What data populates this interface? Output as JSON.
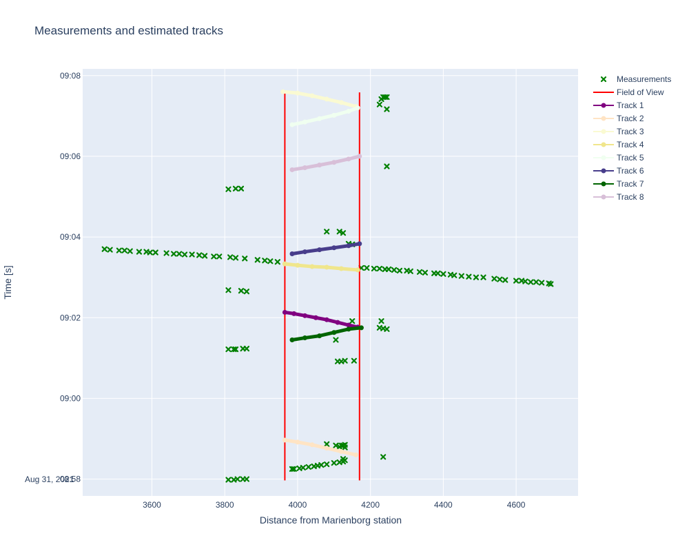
{
  "chart_data": {
    "type": "scatter",
    "title": "Measurements and estimated tracks",
    "xlabel": "Distance from Marienborg station",
    "ylabel": "Time [s]",
    "date_label": "Aug 31, 2021",
    "xlim": [
      3410,
      4770
    ],
    "ylim": [
      "08:57:35",
      "09:08:10"
    ],
    "x_ticks": [
      3600,
      3800,
      4000,
      4200,
      4400,
      4600
    ],
    "y_ticks": [
      "08:58",
      "09:00",
      "09:02",
      "09:04",
      "09:06",
      "09:08"
    ],
    "grid": true,
    "legend_position": "right",
    "colors": {
      "background": "#e5ecf6",
      "grid": "#ffffff",
      "measurements": "#008000",
      "field_of_view": "#ff0000"
    },
    "series": [
      {
        "name": "Measurements",
        "mode": "markers",
        "marker": "x",
        "color": "#008000",
        "points": [
          [
            "3470",
            "09:03:42"
          ],
          [
            "3485",
            "09:03:41"
          ],
          [
            "3510",
            "09:03:40"
          ],
          [
            "3525",
            "09:03:40"
          ],
          [
            "3540",
            "09:03:39"
          ],
          [
            "3565",
            "09:03:38"
          ],
          [
            "3585",
            "09:03:38"
          ],
          [
            "3595",
            "09:03:37"
          ],
          [
            "3610",
            "09:03:37"
          ],
          [
            "3640",
            "09:03:36"
          ],
          [
            "3660",
            "09:03:35"
          ],
          [
            "3675",
            "09:03:35"
          ],
          [
            "3690",
            "09:03:34"
          ],
          [
            "3710",
            "09:03:34"
          ],
          [
            "3730",
            "09:03:33"
          ],
          [
            "3745",
            "09:03:32"
          ],
          [
            "3770",
            "09:03:31"
          ],
          [
            "3785",
            "09:03:31"
          ],
          [
            "3815",
            "09:03:30"
          ],
          [
            "3830",
            "09:03:29"
          ],
          [
            "3855",
            "09:03:28"
          ],
          [
            "3890",
            "09:03:26"
          ],
          [
            "3910",
            "09:03:25"
          ],
          [
            "3925",
            "09:03:24"
          ],
          [
            "3945",
            "09:03:23"
          ],
          [
            "4175",
            "09:03:14"
          ],
          [
            "4190",
            "09:03:14"
          ],
          [
            "4210",
            "09:03:13"
          ],
          [
            "4225",
            "09:03:13"
          ],
          [
            "4240",
            "09:03:12"
          ],
          [
            "4250",
            "09:03:12"
          ],
          [
            "4265",
            "09:03:11"
          ],
          [
            "4280",
            "09:03:10"
          ],
          [
            "4300",
            "09:03:10"
          ],
          [
            "4310",
            "09:03:09"
          ],
          [
            "4335",
            "09:03:08"
          ],
          [
            "4350",
            "09:03:07"
          ],
          [
            "4375",
            "09:03:06"
          ],
          [
            "4385",
            "09:03:06"
          ],
          [
            "4400",
            "09:03:05"
          ],
          [
            "4420",
            "09:03:04"
          ],
          [
            "4430",
            "09:03:03"
          ],
          [
            "4450",
            "09:03:02"
          ],
          [
            "4470",
            "09:03:01"
          ],
          [
            "4490",
            "09:03:00"
          ],
          [
            "4510",
            "09:03:00"
          ],
          [
            "4540",
            "09:02:58"
          ],
          [
            "4555",
            "09:02:57"
          ],
          [
            "4570",
            "09:02:56"
          ],
          [
            "4600",
            "09:02:55"
          ],
          [
            "4615",
            "09:02:55"
          ],
          [
            "4625",
            "09:02:54"
          ],
          [
            "4640",
            "09:02:53"
          ],
          [
            "4655",
            "09:02:53"
          ],
          [
            "4670",
            "09:02:52"
          ],
          [
            "4690",
            "09:02:51"
          ],
          [
            "4695",
            "09:02:50"
          ],
          [
            "3810",
            "09:05:11"
          ],
          [
            "3830",
            "09:05:12"
          ],
          [
            "3845",
            "09:05:12"
          ],
          [
            "3810",
            "09:02:41"
          ],
          [
            "3845",
            "09:02:40"
          ],
          [
            "3860",
            "09:02:39"
          ],
          [
            "3810",
            "09:01:13"
          ],
          [
            "3825",
            "09:01:13"
          ],
          [
            "3830",
            "09:01:13"
          ],
          [
            "3850",
            "09:01:14"
          ],
          [
            "3860",
            "09:01:14"
          ],
          [
            "3810",
            "08:57:59"
          ],
          [
            "3825",
            "08:57:59"
          ],
          [
            "3835",
            "08:58:00"
          ],
          [
            "3850",
            "08:58:00"
          ],
          [
            "3860",
            "08:58:00"
          ],
          [
            "4080",
            "09:04:08"
          ],
          [
            "4115",
            "09:04:08"
          ],
          [
            "4125",
            "09:04:06"
          ],
          [
            "4140",
            "09:03:50"
          ],
          [
            "4150",
            "09:03:49"
          ],
          [
            "4225",
            "09:07:17"
          ],
          [
            "4230",
            "09:07:25"
          ],
          [
            "4235",
            "09:07:28"
          ],
          [
            "4240",
            "09:07:28"
          ],
          [
            "4245",
            "09:07:28"
          ],
          [
            "4245",
            "09:07:10"
          ],
          [
            "4245",
            "09:05:45"
          ],
          [
            "4150",
            "09:01:55"
          ],
          [
            "4230",
            "09:01:55"
          ],
          [
            "4225",
            "09:01:45"
          ],
          [
            "4235",
            "09:01:44"
          ],
          [
            "4245",
            "09:01:43"
          ],
          [
            "4105",
            "09:01:27"
          ],
          [
            "4110",
            "09:00:55"
          ],
          [
            "4120",
            "09:00:55"
          ],
          [
            "4130",
            "09:00:56"
          ],
          [
            "4155",
            "09:00:56"
          ],
          [
            "4080",
            "08:58:52"
          ],
          [
            "4105",
            "08:58:50"
          ],
          [
            "4115",
            "08:58:48"
          ],
          [
            "4120",
            "08:58:50"
          ],
          [
            "4125",
            "08:58:50"
          ],
          [
            "4130",
            "08:58:51"
          ],
          [
            "4130",
            "08:58:47"
          ],
          [
            "4125",
            "08:58:30"
          ],
          [
            "4235",
            "08:58:33"
          ],
          [
            "3985",
            "08:58:15"
          ],
          [
            "3990",
            "08:58:15"
          ],
          [
            "4005",
            "08:58:16"
          ],
          [
            "4015",
            "08:58:17"
          ],
          [
            "4030",
            "08:58:18"
          ],
          [
            "4045",
            "08:58:19"
          ],
          [
            "4055",
            "08:58:20"
          ],
          [
            "4065",
            "08:58:21"
          ],
          [
            "4080",
            "08:58:22"
          ],
          [
            "4100",
            "08:58:24"
          ],
          [
            "4115",
            "08:58:25"
          ],
          [
            "4125",
            "08:58:26"
          ],
          [
            "4130",
            "08:58:28"
          ]
        ]
      },
      {
        "name": "Field of View",
        "mode": "lines",
        "color": "#ff0000",
        "segments": [
          [
            [
              "3965",
              "08:57:58"
            ],
            [
              "3965",
              "09:07:35"
            ]
          ],
          [
            [
              "4170",
              "08:57:58"
            ],
            [
              "4170",
              "09:07:35"
            ]
          ]
        ]
      },
      {
        "name": "Track 1",
        "mode": "lines+markers",
        "color": "#800080",
        "points": [
          [
            "3965",
            "09:02:08"
          ],
          [
            "3990",
            "09:02:06"
          ],
          [
            "4020",
            "09:02:03"
          ],
          [
            "4050",
            "09:02:00"
          ],
          [
            "4080",
            "09:01:57"
          ],
          [
            "4110",
            "09:01:53"
          ],
          [
            "4140",
            "09:01:49"
          ],
          [
            "4165",
            "09:01:46"
          ]
        ]
      },
      {
        "name": "Track 2",
        "mode": "lines+markers",
        "color": "#ffe4c4",
        "points": [
          [
            "3965",
            "08:58:58"
          ],
          [
            "4000",
            "08:58:55"
          ],
          [
            "4040",
            "08:58:51"
          ],
          [
            "4080",
            "08:58:46"
          ],
          [
            "4120",
            "08:58:41"
          ],
          [
            "4160",
            "08:58:36"
          ]
        ]
      },
      {
        "name": "Track 3",
        "mode": "lines+markers",
        "color": "#fafad2",
        "points": [
          [
            "3960",
            "09:07:36"
          ],
          [
            "4000",
            "09:07:34"
          ],
          [
            "4040",
            "09:07:30"
          ],
          [
            "4080",
            "09:07:25"
          ],
          [
            "4120",
            "09:07:20"
          ],
          [
            "4160",
            "09:07:14"
          ]
        ]
      },
      {
        "name": "Track 4",
        "mode": "lines+markers",
        "color": "#f0e68c",
        "points": [
          [
            "3965",
            "09:03:20"
          ],
          [
            "4000",
            "09:03:18"
          ],
          [
            "4040",
            "09:03:16"
          ],
          [
            "4080",
            "09:03:15"
          ],
          [
            "4120",
            "09:03:13"
          ],
          [
            "4165",
            "09:03:11"
          ]
        ]
      },
      {
        "name": "Track 5",
        "mode": "lines+markers",
        "color": "#f0fff0",
        "points": [
          [
            "3985",
            "09:06:47"
          ],
          [
            "4020",
            "09:06:51"
          ],
          [
            "4060",
            "09:06:56"
          ],
          [
            "4100",
            "09:07:01"
          ],
          [
            "4140",
            "09:07:07"
          ],
          [
            "4165",
            "09:07:12"
          ]
        ]
      },
      {
        "name": "Track 6",
        "mode": "lines+markers",
        "color": "#483d8b",
        "points": [
          [
            "3985",
            "09:03:35"
          ],
          [
            "4020",
            "09:03:38"
          ],
          [
            "4060",
            "09:03:41"
          ],
          [
            "4100",
            "09:03:44"
          ],
          [
            "4140",
            "09:03:47"
          ],
          [
            "4170",
            "09:03:50"
          ]
        ]
      },
      {
        "name": "Track 7",
        "mode": "lines+markers",
        "color": "#006400",
        "points": [
          [
            "3985",
            "09:01:27"
          ],
          [
            "4020",
            "09:01:30"
          ],
          [
            "4060",
            "09:01:33"
          ],
          [
            "4100",
            "09:01:38"
          ],
          [
            "4140",
            "09:01:43"
          ],
          [
            "4175",
            "09:01:45"
          ]
        ]
      },
      {
        "name": "Track 8",
        "mode": "lines+markers",
        "color": "#d8bfd8",
        "points": [
          [
            "3985",
            "09:05:40"
          ],
          [
            "4020",
            "09:05:43"
          ],
          [
            "4060",
            "09:05:47"
          ],
          [
            "4100",
            "09:05:51"
          ],
          [
            "4140",
            "09:05:56"
          ],
          [
            "4170",
            "09:06:00"
          ]
        ]
      }
    ]
  }
}
